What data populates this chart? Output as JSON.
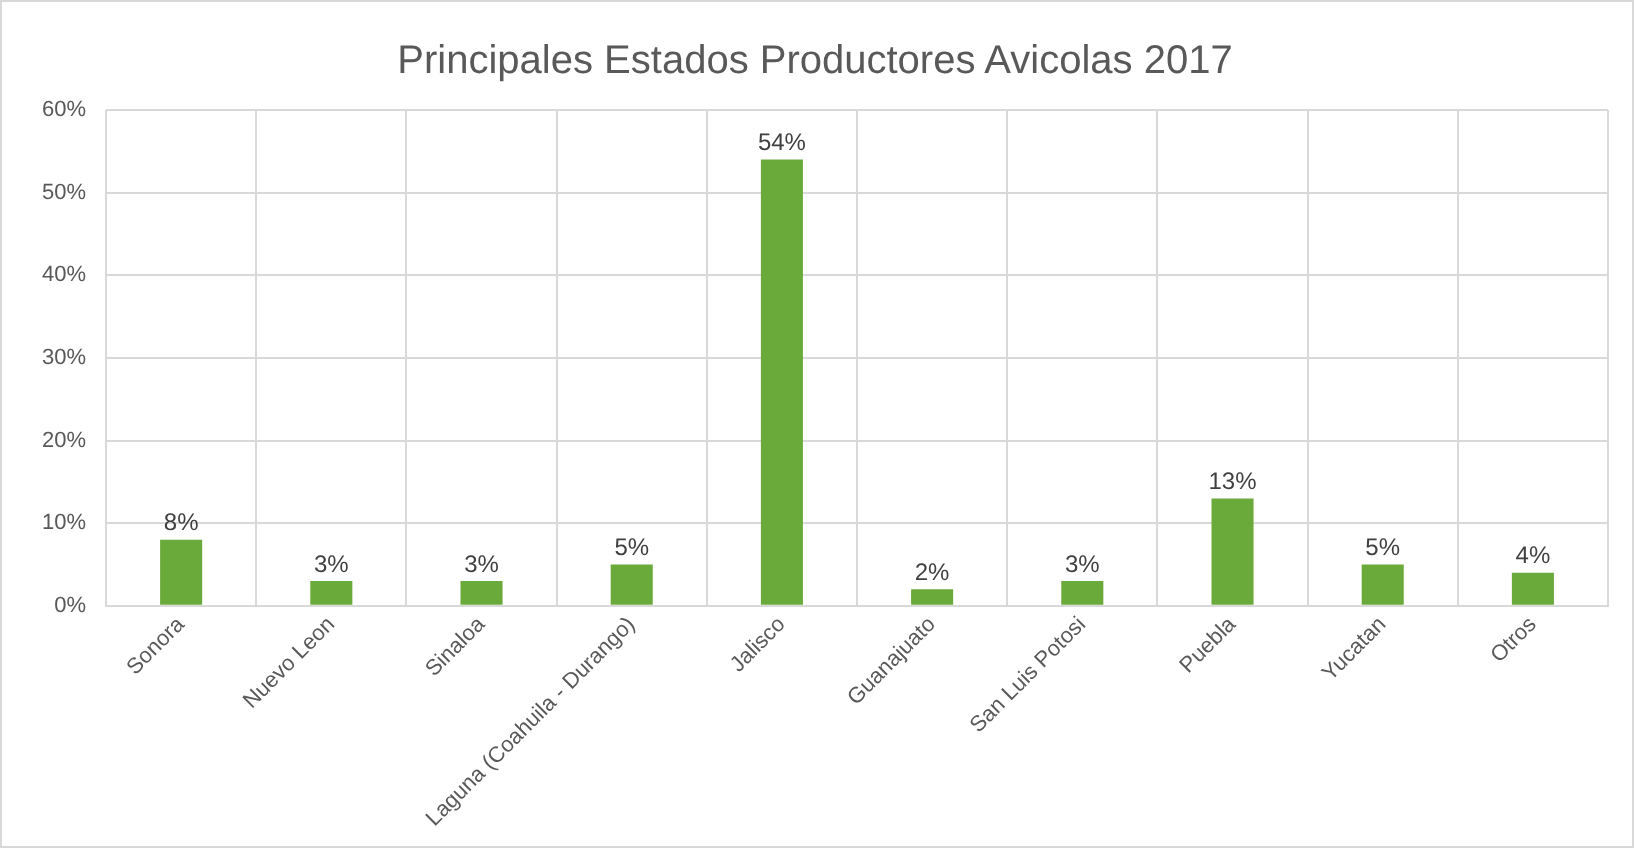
{
  "chart_data": {
    "type": "bar",
    "title": "Principales Estados Productores Avicolas 2017",
    "categories": [
      "Sonora",
      "Nuevo Leon",
      "Sinaloa",
      "Laguna (Coahuila - Durango)",
      "Jalisco",
      "Guanajuato",
      "San Luis Potosi",
      "Puebla",
      "Yucatan",
      "Otros"
    ],
    "values": [
      8,
      3,
      3,
      5,
      54,
      2,
      3,
      13,
      5,
      4
    ],
    "value_labels": [
      "8%",
      "3%",
      "3%",
      "5%",
      "54%",
      "2%",
      "3%",
      "13%",
      "5%",
      "4%"
    ],
    "color": "#6aaa3a",
    "ylim": [
      0,
      60
    ],
    "yticks": [
      {
        "value": 0,
        "label": "0%"
      },
      {
        "value": 10,
        "label": "10%"
      },
      {
        "value": 20,
        "label": "20%"
      },
      {
        "value": 30,
        "label": "30%"
      },
      {
        "value": 40,
        "label": "40%"
      },
      {
        "value": 50,
        "label": "50%"
      },
      {
        "value": 60,
        "label": "60%"
      }
    ],
    "grid": true,
    "legend": false
  }
}
